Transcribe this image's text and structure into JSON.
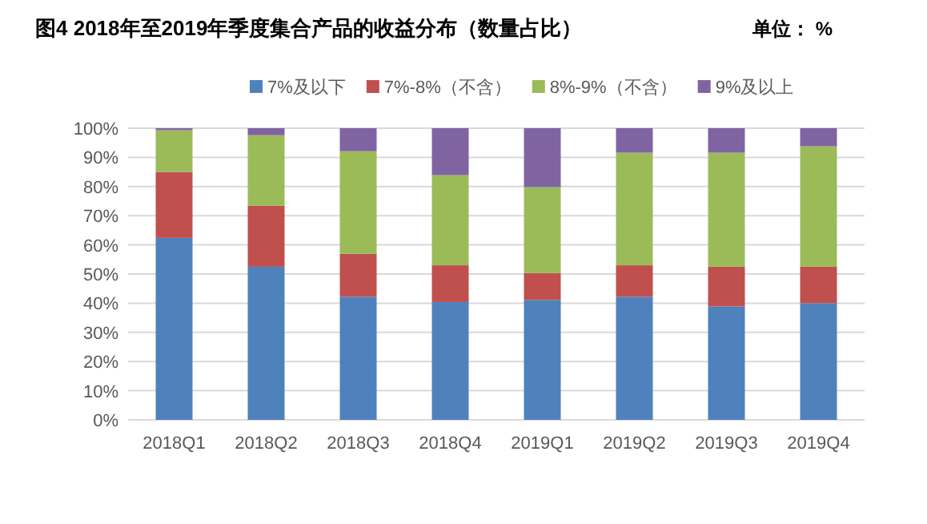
{
  "chart_data": {
    "type": "bar",
    "stacked": true,
    "title": "图4  2018年至2019年季度集合产品的收益分布（数量占比）",
    "annotations": [
      "单位： %"
    ],
    "categories": [
      "2018Q1",
      "2018Q2",
      "2018Q3",
      "2018Q4",
      "2019Q1",
      "2019Q2",
      "2019Q3",
      "2019Q4"
    ],
    "series": [
      {
        "name": "7%及以下",
        "color": "#4f81bd",
        "values": [
          62.4,
          52.5,
          42.2,
          40.4,
          41.1,
          42.2,
          38.9,
          40.0
        ]
      },
      {
        "name": "7%-8%（不含）",
        "color": "#c0504d",
        "values": [
          22.6,
          20.9,
          14.7,
          12.6,
          9.2,
          10.8,
          13.6,
          12.5
        ]
      },
      {
        "name": "8%-9%（不含）",
        "color": "#9bbb59",
        "values": [
          14.3,
          24.2,
          35.2,
          30.9,
          29.5,
          38.6,
          39.1,
          41.3
        ]
      },
      {
        "name": "9%及以上",
        "color": "#8064a2",
        "values": [
          0.7,
          2.4,
          7.9,
          16.1,
          20.2,
          8.4,
          8.4,
          6.2
        ]
      }
    ],
    "ylim": [
      0,
      100
    ],
    "yticks": [
      {
        "value": 0,
        "label": "0%"
      },
      {
        "value": 10,
        "label": "10%"
      },
      {
        "value": 20,
        "label": "20%"
      },
      {
        "value": 30,
        "label": "30%"
      },
      {
        "value": 40,
        "label": "40%"
      },
      {
        "value": 50,
        "label": "50%"
      },
      {
        "value": 60,
        "label": "60%"
      },
      {
        "value": 70,
        "label": "70%"
      },
      {
        "value": 80,
        "label": "80%"
      },
      {
        "value": 90,
        "label": "90%"
      },
      {
        "value": 100,
        "label": "100%"
      }
    ],
    "grid": "y",
    "legend": "top"
  }
}
